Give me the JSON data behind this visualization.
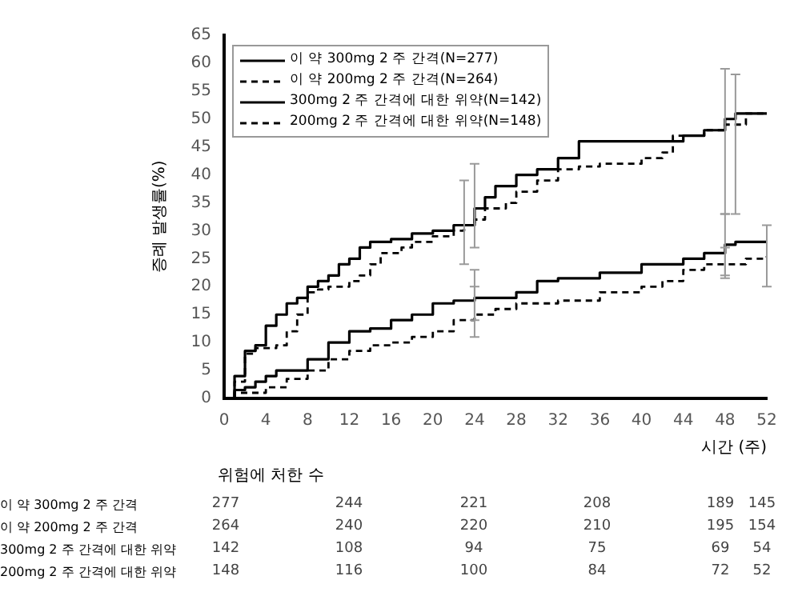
{
  "chart_data": {
    "type": "step",
    "xlabel": "시간 (주)",
    "ylabel": "증례 발생률(%)",
    "xlim": [
      0,
      52
    ],
    "xticks": [
      0,
      4,
      8,
      12,
      16,
      20,
      24,
      28,
      32,
      36,
      40,
      44,
      48,
      52
    ],
    "ylim": [
      0,
      65
    ],
    "yticks": [
      0,
      5,
      10,
      15,
      20,
      25,
      30,
      35,
      40,
      45,
      50,
      55,
      60,
      65
    ],
    "grid": false,
    "legend": "top left",
    "series": [
      {
        "name": "이 약 300mg 2 주 간격(N=277)",
        "color": "#000000",
        "line_style": "solid",
        "x": [
          0,
          1,
          2,
          3,
          4,
          5,
          8,
          10,
          12,
          14,
          16,
          18,
          20,
          22,
          24,
          28,
          30,
          32,
          36,
          40,
          44,
          46,
          48,
          49,
          52
        ],
        "values": [
          0,
          1.5,
          2,
          3,
          4,
          5,
          7,
          10,
          12,
          12.5,
          14,
          15,
          17,
          17.5,
          18,
          19,
          21,
          21.5,
          22.5,
          24,
          25,
          26,
          27.5,
          28,
          28
        ],
        "errors": [
          null,
          null,
          null,
          null,
          null,
          null,
          null,
          null,
          null,
          null,
          null,
          null,
          null,
          null,
          [
            14,
            23
          ],
          null,
          null,
          null,
          null,
          null,
          null,
          null,
          [
            21.5,
            33
          ],
          null,
          null
        ]
      },
      {
        "name": "이 약 200mg 2 주 간격(N=264)",
        "color": "#000000",
        "line_style": "dashed",
        "x": [
          0,
          1,
          2,
          4,
          6,
          8,
          10,
          12,
          14,
          16,
          18,
          20,
          22,
          24,
          26,
          28,
          32,
          36,
          40,
          42,
          44,
          46,
          48,
          50,
          52
        ],
        "values": [
          0,
          1,
          1,
          2,
          3.5,
          5,
          7,
          8.5,
          9.5,
          10,
          11,
          12,
          14,
          15,
          16,
          17,
          17.5,
          19,
          20,
          21,
          23,
          24,
          24,
          25,
          25.5
        ],
        "errors": [
          null,
          null,
          null,
          null,
          null,
          null,
          null,
          null,
          null,
          null,
          null,
          null,
          null,
          [
            11,
            20
          ],
          null,
          null,
          null,
          null,
          null,
          null,
          null,
          null,
          [
            22,
            27
          ],
          null,
          [
            20,
            31
          ]
        ]
      },
      {
        "name": "300mg 2 주 간격에 대한 위약(N=142)",
        "color": "#000000",
        "line_style": "solid",
        "x": [
          0,
          1,
          2,
          3,
          4,
          5,
          6,
          7,
          8,
          9,
          10,
          11,
          12,
          13,
          14,
          16,
          18,
          20,
          22,
          24,
          25,
          26,
          28,
          30,
          32,
          34,
          40,
          44,
          46,
          48,
          49,
          52
        ],
        "values": [
          0,
          4,
          8.5,
          9.5,
          13,
          15,
          17,
          18,
          20,
          21,
          22,
          24,
          25,
          27,
          28,
          28.5,
          29.5,
          30,
          31,
          34,
          36,
          38,
          40,
          41,
          43,
          46,
          46,
          47,
          48,
          50,
          51,
          51
        ],
        "errors": [
          null,
          null,
          null,
          null,
          null,
          null,
          null,
          null,
          null,
          null,
          null,
          null,
          null,
          null,
          null,
          null,
          null,
          null,
          null,
          [
            27,
            42
          ],
          null,
          null,
          null,
          null,
          null,
          null,
          null,
          null,
          null,
          null,
          [
            33,
            58
          ],
          null
        ]
      },
      {
        "name": "200mg 2 주 간격에 대한 위약(N=148)",
        "color": "#000000",
        "line_style": "dashed",
        "x": [
          0,
          1,
          2,
          3,
          5,
          6,
          7,
          8,
          9,
          10,
          12,
          13,
          14,
          15,
          17,
          18,
          20,
          22,
          23,
          24,
          25,
          27,
          28,
          30,
          32,
          34,
          36,
          40,
          42,
          43,
          46,
          48,
          50,
          52
        ],
        "values": [
          0,
          3,
          8,
          9,
          9.5,
          12,
          15,
          19,
          19.5,
          20,
          21,
          22,
          24,
          26,
          27,
          28,
          29,
          30,
          31,
          32,
          34,
          35,
          37,
          39,
          41,
          41.5,
          42,
          43,
          44,
          47,
          48,
          49,
          51,
          51
        ],
        "errors": [
          null,
          null,
          null,
          null,
          null,
          null,
          null,
          null,
          null,
          null,
          null,
          null,
          null,
          null,
          null,
          null,
          null,
          null,
          [
            24,
            39
          ],
          null,
          null,
          null,
          null,
          null,
          null,
          null,
          null,
          null,
          null,
          null,
          null,
          [
            33,
            59
          ],
          null,
          null
        ]
      }
    ],
    "annotations": [
      "위험에 처한 수",
      "이 약 300mg 2 주 간격",
      "277",
      "244",
      "221",
      "208",
      "189",
      "145",
      "이 약 200mg 2 주 간격",
      "264",
      "240",
      "220",
      "210",
      "195",
      "154",
      "300mg 2 주 간격에 대한 위약",
      "142",
      "108",
      "94",
      "75",
      "69",
      "54",
      "200mg 2 주 간격에 대한 위약",
      "148",
      "116",
      "100",
      "84",
      "72",
      "52"
    ]
  }
}
